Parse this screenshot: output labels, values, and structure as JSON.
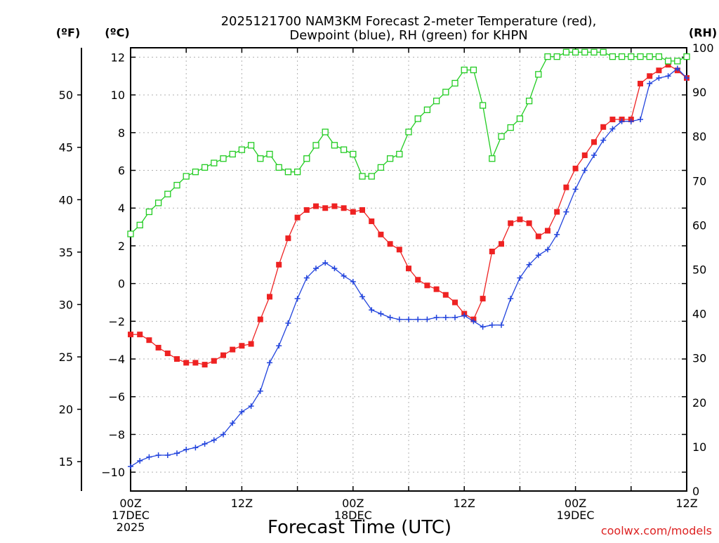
{
  "chart_data": {
    "type": "line",
    "title_line1": "2025121700 NAM3KM Forecast 2-meter Temperature (red),",
    "title_line2": "Dewpoint (blue), RH (green) for KHPN",
    "xlabel": "Forecast Time (UTC)",
    "credit": "coolwx.com/models",
    "left_unit_label": "(ºF)",
    "inner_unit_label": "(ºC)",
    "right_unit_label": "(RH)",
    "x_range_hours": [
      0,
      60
    ],
    "x_ticks": [
      {
        "hour": 0,
        "line1": "00Z",
        "line2": "17DEC",
        "line3": "2025"
      },
      {
        "hour": 12,
        "line1": "12Z",
        "line2": "",
        "line3": ""
      },
      {
        "hour": 24,
        "line1": "00Z",
        "line2": "18DEC",
        "line3": ""
      },
      {
        "hour": 36,
        "line1": "12Z",
        "line2": "",
        "line3": ""
      },
      {
        "hour": 48,
        "line1": "00Z",
        "line2": "19DEC",
        "line3": ""
      },
      {
        "hour": 60,
        "line1": "12Z",
        "line2": "",
        "line3": ""
      }
    ],
    "celsius_axis": {
      "ylim": [
        -11.0,
        12.5
      ],
      "ticks": [
        -10,
        -8,
        -6,
        -4,
        -2,
        0,
        2,
        4,
        6,
        8,
        10,
        12
      ]
    },
    "fahrenheit_axis": {
      "ticks": [
        15,
        20,
        25,
        30,
        35,
        40,
        45,
        50
      ]
    },
    "rh_axis": {
      "ylim": [
        0,
        100
      ],
      "ticks": [
        0,
        10,
        20,
        30,
        40,
        50,
        60,
        70,
        80,
        90,
        100
      ]
    },
    "hours": [
      0,
      1,
      2,
      3,
      4,
      5,
      6,
      7,
      8,
      9,
      10,
      11,
      12,
      13,
      14,
      15,
      16,
      17,
      18,
      19,
      20,
      21,
      22,
      23,
      24,
      25,
      26,
      27,
      28,
      29,
      30,
      31,
      32,
      33,
      34,
      35,
      36,
      37,
      38,
      39,
      40,
      41,
      42,
      43,
      44,
      45,
      46,
      47,
      48,
      49,
      50,
      51,
      52,
      53,
      54,
      55,
      56,
      57,
      58,
      59,
      60
    ],
    "series": [
      {
        "name": "2-meter Temperature (°C)",
        "color": "#ee2222",
        "marker": "filled-square",
        "axis": "celsius",
        "values": [
          -2.7,
          -2.7,
          -3.0,
          -3.4,
          -3.7,
          -4.0,
          -4.2,
          -4.2,
          -4.3,
          -4.1,
          -3.8,
          -3.5,
          -3.3,
          -3.2,
          -1.9,
          -0.7,
          1.0,
          2.4,
          3.5,
          3.9,
          4.1,
          4.0,
          4.1,
          4.0,
          3.8,
          3.9,
          3.3,
          2.6,
          2.1,
          1.8,
          0.8,
          0.2,
          -0.1,
          -0.3,
          -0.6,
          -1.0,
          -1.6,
          -1.9,
          -0.8,
          1.7,
          2.1,
          3.2,
          3.4,
          3.2,
          2.5,
          2.8,
          3.8,
          5.1,
          6.1,
          6.8,
          7.5,
          8.3,
          8.7,
          8.7,
          8.7,
          10.6,
          11.0,
          11.3,
          11.6,
          11.3,
          10.9
        ]
      },
      {
        "name": "Dewpoint (°C)",
        "color": "#2244dd",
        "marker": "plus",
        "axis": "celsius",
        "values": [
          -9.7,
          -9.4,
          -9.2,
          -9.1,
          -9.1,
          -9.0,
          -8.8,
          -8.7,
          -8.5,
          -8.3,
          -8.0,
          -7.4,
          -6.8,
          -6.5,
          -5.7,
          -4.2,
          -3.3,
          -2.1,
          -0.8,
          0.3,
          0.8,
          1.1,
          0.8,
          0.4,
          0.1,
          -0.7,
          -1.4,
          -1.6,
          -1.8,
          -1.9,
          -1.9,
          -1.9,
          -1.9,
          -1.8,
          -1.8,
          -1.8,
          -1.7,
          -2.0,
          -2.3,
          -2.2,
          -2.2,
          -0.8,
          0.3,
          1.0,
          1.5,
          1.8,
          2.6,
          3.8,
          5.0,
          6.0,
          6.8,
          7.6,
          8.2,
          8.6,
          8.6,
          8.7,
          10.6,
          10.9,
          11.0,
          11.4,
          10.9
        ]
      },
      {
        "name": "RH (%)",
        "color": "#22cc22",
        "marker": "open-square",
        "axis": "rh",
        "values": [
          58,
          60,
          63,
          65,
          67,
          69,
          71,
          72,
          73,
          74,
          75,
          76,
          77,
          78,
          75,
          76,
          73,
          72,
          72,
          75,
          78,
          81,
          78,
          77,
          76,
          71,
          71,
          73,
          75,
          76,
          81,
          84,
          86,
          88,
          90,
          92,
          95,
          95,
          87,
          75,
          80,
          82,
          84,
          88,
          94,
          98,
          98,
          99,
          99,
          99,
          99,
          99,
          98,
          98,
          98,
          98,
          98,
          98,
          97,
          97,
          98
        ]
      }
    ]
  }
}
